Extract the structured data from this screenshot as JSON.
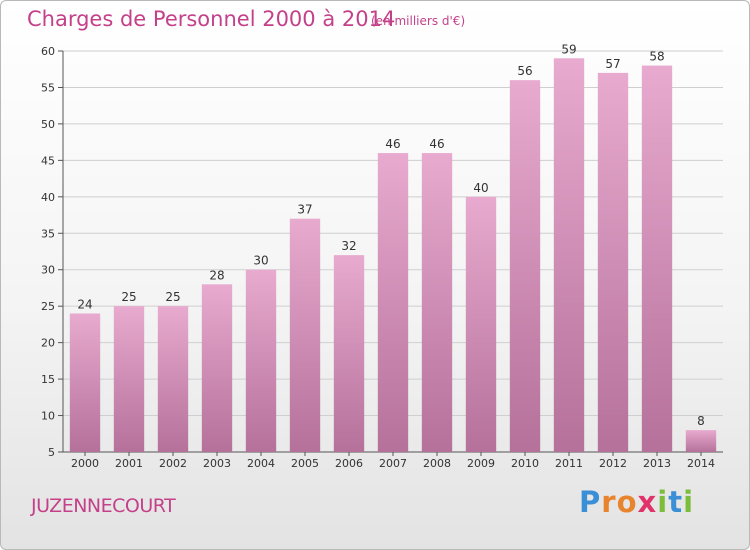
{
  "header": {
    "title": "Charges de Personnel 2000 à 2014",
    "subtitle": "(en milliers d'€)"
  },
  "footer": {
    "commune": "JUZENNECOURT",
    "logo": {
      "text": "Proxiti",
      "letters": [
        {
          "ch": "P",
          "color": "#3a8fd6"
        },
        {
          "ch": "r",
          "color": "#e7842d"
        },
        {
          "ch": "o",
          "color": "#e7842d"
        },
        {
          "ch": "x",
          "color": "#e0336b"
        },
        {
          "ch": "i",
          "color": "#7cbd3c"
        },
        {
          "ch": "t",
          "color": "#3a8fd6"
        },
        {
          "ch": "i",
          "color": "#7cbd3c"
        }
      ]
    }
  },
  "colors": {
    "title": "#c4418a",
    "bar_top": "#e8aacf",
    "bar_bottom": "#b5719a",
    "grid": "#cfcfcf"
  },
  "chart_data": {
    "type": "bar",
    "title": "Charges de Personnel 2000 à 2014",
    "subtitle": "(en milliers d'€)",
    "categories": [
      "2000",
      "2001",
      "2002",
      "2003",
      "2004",
      "2005",
      "2006",
      "2007",
      "2008",
      "2009",
      "2010",
      "2011",
      "2012",
      "2013",
      "2014"
    ],
    "values": [
      24,
      25,
      25,
      28,
      30,
      37,
      32,
      46,
      46,
      40,
      56,
      59,
      57,
      58,
      8
    ],
    "ylim": [
      5,
      60
    ],
    "yticks": [
      5,
      10,
      15,
      20,
      25,
      30,
      35,
      40,
      45,
      50,
      55,
      60
    ],
    "grid": true,
    "data_labels": true
  }
}
